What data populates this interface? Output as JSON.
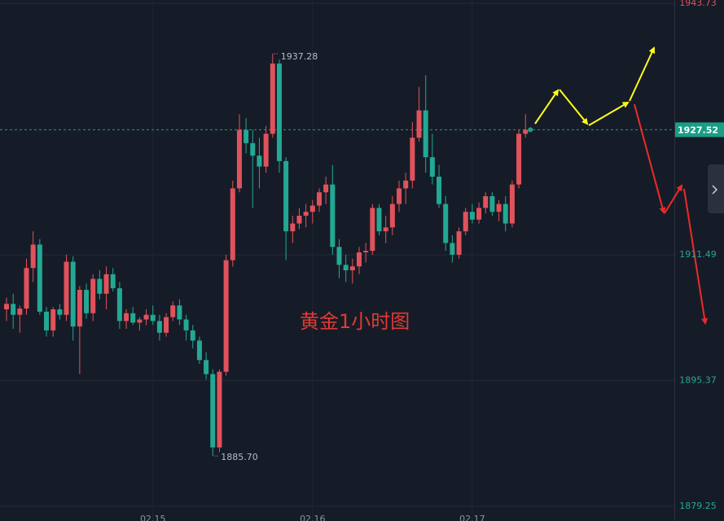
{
  "chart_data": {
    "type": "candlestick",
    "annotation": "黄金1小时图",
    "categories": [
      null,
      null,
      null,
      null,
      null,
      null,
      null,
      null,
      null,
      null,
      null,
      null,
      null,
      null,
      null,
      null,
      null,
      null,
      null,
      null,
      null,
      null,
      "02.15",
      null,
      null,
      null,
      null,
      null,
      null,
      null,
      null,
      null,
      null,
      null,
      null,
      null,
      null,
      null,
      null,
      null,
      null,
      null,
      null,
      null,
      null,
      null,
      "02.16",
      null,
      null,
      null,
      null,
      null,
      null,
      null,
      null,
      null,
      null,
      null,
      null,
      null,
      null,
      null,
      null,
      null,
      null,
      null,
      null,
      null,
      null,
      null,
      "02.17",
      null,
      null,
      null,
      null,
      null,
      null,
      null,
      null
    ],
    "open": [
      1904.5,
      1905.2,
      1903.8,
      1904.6,
      1909.8,
      1912.8,
      1904.2,
      1901.8,
      1904.5,
      1903.8,
      1910.6,
      1902.3,
      1907.0,
      1904.0,
      1908.4,
      1906.5,
      1909.0,
      1907.2,
      1903.0,
      1904.0,
      1902.8,
      1903.2,
      1903.8,
      1903.0,
      1901.5,
      1903.5,
      1905.0,
      1903.2,
      1901.8,
      1900.5,
      1898.0,
      1896.2,
      1886.8,
      1896.5,
      1910.8,
      1920.0,
      1927.5,
      1925.8,
      1924.2,
      1922.8,
      1927.0,
      1936.0,
      1923.5,
      1914.5,
      1915.5,
      1916.5,
      1917.0,
      1917.8,
      1919.5,
      1920.5,
      1912.5,
      1910.2,
      1909.5,
      1910.0,
      1911.8,
      1912.0,
      1917.5,
      1914.5,
      1915.0,
      1918.0,
      1920.0,
      1921.0,
      1926.5,
      1930.0,
      1924.0,
      1921.5,
      1918.0,
      1913.0,
      1911.5,
      1914.5,
      1917.0,
      1916.0,
      1917.5,
      1919.0,
      1917.0,
      1918.0,
      1915.5,
      1920.5,
      1927.0
    ],
    "high": [
      1906.0,
      1906.5,
      1905.0,
      1911.0,
      1914.5,
      1913.5,
      1904.8,
      1904.8,
      1905.2,
      1911.5,
      1911.3,
      1907.5,
      1907.8,
      1909.0,
      1909.5,
      1910.0,
      1909.8,
      1908.0,
      1904.5,
      1904.8,
      1903.5,
      1904.5,
      1905.0,
      1903.8,
      1904.0,
      1905.5,
      1905.8,
      1903.8,
      1902.5,
      1901.0,
      1899.0,
      1896.8,
      1896.8,
      1911.5,
      1921.0,
      1929.5,
      1929.0,
      1927.5,
      1926.5,
      1928.0,
      1937.28,
      1936.5,
      1924.0,
      1916.5,
      1917.5,
      1918.0,
      1918.5,
      1920.0,
      1921.5,
      1923.0,
      1913.5,
      1911.5,
      1911.0,
      1912.5,
      1913.0,
      1918.0,
      1918.0,
      1916.5,
      1919.0,
      1921.0,
      1922.0,
      1928.5,
      1933.0,
      1934.5,
      1927.0,
      1923.0,
      1919.0,
      1914.0,
      1915.0,
      1917.5,
      1918.0,
      1918.2,
      1919.5,
      1919.5,
      1918.5,
      1919.0,
      1921.0,
      1927.5,
      1929.5
    ],
    "low": [
      1903.0,
      1902.0,
      1901.5,
      1903.8,
      1908.0,
      1903.8,
      1901.0,
      1901.0,
      1903.2,
      1903.0,
      1900.5,
      1896.2,
      1903.3,
      1903.0,
      1905.8,
      1904.5,
      1906.8,
      1902.0,
      1902.0,
      1902.5,
      1901.8,
      1902.5,
      1902.5,
      1900.5,
      1901.0,
      1903.0,
      1902.5,
      1900.5,
      1899.5,
      1897.5,
      1895.5,
      1885.7,
      1886.2,
      1896.0,
      1910.0,
      1919.5,
      1924.5,
      1917.5,
      1920.0,
      1922.0,
      1926.5,
      1922.0,
      1910.8,
      1913.0,
      1914.8,
      1915.0,
      1915.5,
      1917.0,
      1918.0,
      1911.5,
      1908.5,
      1908.0,
      1907.8,
      1909.0,
      1910.5,
      1911.5,
      1914.0,
      1913.0,
      1914.0,
      1917.0,
      1918.0,
      1920.0,
      1926.0,
      1922.0,
      1920.5,
      1917.5,
      1912.0,
      1910.5,
      1911.0,
      1914.0,
      1915.5,
      1915.5,
      1916.8,
      1916.5,
      1915.8,
      1914.5,
      1915.0,
      1920.0,
      1926.5
    ],
    "close": [
      1905.2,
      1903.8,
      1904.6,
      1909.8,
      1912.8,
      1904.2,
      1901.8,
      1904.5,
      1903.8,
      1910.6,
      1902.3,
      1907.0,
      1904.0,
      1908.4,
      1906.5,
      1909.0,
      1907.2,
      1903.0,
      1904.0,
      1902.8,
      1903.2,
      1903.8,
      1903.0,
      1901.5,
      1903.5,
      1905.0,
      1903.2,
      1901.8,
      1900.5,
      1898.0,
      1896.2,
      1886.8,
      1896.5,
      1910.8,
      1920.0,
      1927.5,
      1925.8,
      1924.2,
      1922.8,
      1927.0,
      1936.0,
      1923.5,
      1914.5,
      1915.5,
      1916.5,
      1917.0,
      1917.8,
      1919.5,
      1920.5,
      1912.5,
      1910.2,
      1909.5,
      1910.0,
      1911.8,
      1912.0,
      1917.5,
      1914.5,
      1915.0,
      1918.0,
      1920.0,
      1921.0,
      1926.5,
      1930.0,
      1924.0,
      1921.5,
      1918.0,
      1913.0,
      1911.5,
      1914.5,
      1917.0,
      1916.0,
      1917.5,
      1919.0,
      1917.0,
      1918.0,
      1915.5,
      1920.5,
      1927.0,
      1927.52
    ],
    "extreme_labels": {
      "high": "1937.28",
      "low": "1885.70"
    },
    "ylim": [
      1879.25,
      1943.73
    ],
    "yticks": [
      1879.25,
      1895.37,
      1911.49,
      1943.73
    ],
    "grid": true,
    "up_color": "#e0525c",
    "down_color": "#23a893",
    "last_price_color": "#1a9e86"
  }
}
